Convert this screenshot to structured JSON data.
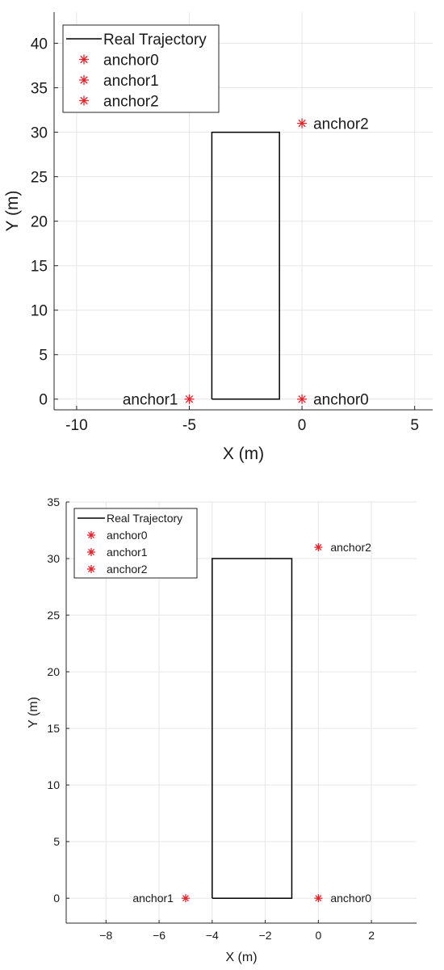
{
  "chart_data": [
    {
      "type": "line",
      "xlabel": "X (m)",
      "ylabel": "Y (m)",
      "xlim": [
        -11,
        5.8
      ],
      "ylim": [
        -1.2,
        43.5
      ],
      "xticks": [
        -10,
        -5,
        0,
        5
      ],
      "yticks": [
        0,
        5,
        10,
        15,
        20,
        25,
        30,
        35,
        40
      ],
      "grid": true,
      "legend_position": "top-left",
      "series": [
        {
          "name": "Real Trajectory",
          "kind": "line",
          "color": "#000000",
          "x": [
            -4,
            -1,
            -1,
            -4,
            -4
          ],
          "y": [
            0,
            0,
            30,
            30,
            0
          ]
        },
        {
          "name": "anchor0",
          "kind": "marker",
          "color": "#e8202a",
          "x": [
            0
          ],
          "y": [
            0
          ]
        },
        {
          "name": "anchor1",
          "kind": "marker",
          "color": "#e8202a",
          "x": [
            -5
          ],
          "y": [
            0
          ]
        },
        {
          "name": "anchor2",
          "kind": "marker",
          "color": "#e8202a",
          "x": [
            0
          ],
          "y": [
            31
          ]
        }
      ],
      "annotations": [
        {
          "text": "anchor0",
          "x": 0,
          "y": 0,
          "side": "right"
        },
        {
          "text": "anchor1",
          "x": -5,
          "y": 0,
          "side": "left"
        },
        {
          "text": "anchor2",
          "x": 0,
          "y": 31,
          "side": "right"
        }
      ]
    },
    {
      "type": "line",
      "xlabel": "X (m)",
      "ylabel": "Y (m)",
      "xlim": [
        -9.5,
        3.7
      ],
      "ylim": [
        -2.2,
        35
      ],
      "xticks": [
        -8,
        -6,
        -4,
        -2,
        0,
        2
      ],
      "xtick_labels": [
        "−8",
        "−6",
        "−4",
        "−2",
        "0",
        "2"
      ],
      "yticks": [
        0,
        5,
        10,
        15,
        20,
        25,
        30,
        35
      ],
      "grid": true,
      "legend_position": "top-left",
      "series": [
        {
          "name": "Real Trajectory",
          "kind": "line",
          "color": "#000000",
          "x": [
            -4,
            -1,
            -1,
            -4,
            -4
          ],
          "y": [
            0,
            0,
            30,
            30,
            0
          ]
        },
        {
          "name": "anchor0",
          "kind": "marker",
          "color": "#e8202a",
          "x": [
            0
          ],
          "y": [
            0
          ]
        },
        {
          "name": "anchor1",
          "kind": "marker",
          "color": "#e8202a",
          "x": [
            -5
          ],
          "y": [
            0
          ]
        },
        {
          "name": "anchor2",
          "kind": "marker",
          "color": "#e8202a",
          "x": [
            0
          ],
          "y": [
            31
          ]
        }
      ],
      "annotations": [
        {
          "text": "anchor0",
          "x": 0,
          "y": 0,
          "side": "right"
        },
        {
          "text": "anchor1",
          "x": -5,
          "y": 0,
          "side": "left"
        },
        {
          "text": "anchor2",
          "x": 0,
          "y": 31,
          "side": "right"
        }
      ]
    }
  ]
}
